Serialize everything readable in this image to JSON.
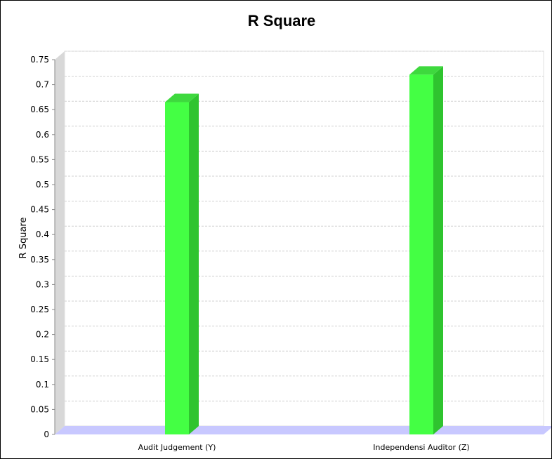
{
  "chart_data": {
    "type": "bar",
    "title": "R Square",
    "xlabel": "",
    "ylabel": "R Square",
    "categories": [
      "Audit Judgement (Y)",
      "Independensi Auditor (Z)"
    ],
    "values": [
      0.665,
      0.72
    ],
    "ylim": [
      0,
      0.75
    ],
    "yticks": [
      "0",
      "0.05",
      "0.1",
      "0.15",
      "0.2",
      "0.25",
      "0.3",
      "0.35",
      "0.4",
      "0.45",
      "0.5",
      "0.55",
      "0.6",
      "0.65",
      "0.7",
      "0.75"
    ],
    "grid": true,
    "colors": {
      "bar_front": "#44ff44",
      "bar_side": "#2fc42f",
      "bar_top": "#3ed93e",
      "floor": "#c8c8ff",
      "wall": "#d8d8d8",
      "grid": "#d0d0d0"
    }
  }
}
